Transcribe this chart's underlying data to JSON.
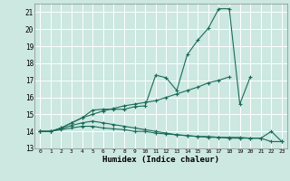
{
  "xlabel": "Humidex (Indice chaleur)",
  "xlim": [
    -0.5,
    23.5
  ],
  "ylim": [
    13,
    21.5
  ],
  "yticks": [
    13,
    14,
    15,
    16,
    17,
    18,
    19,
    20,
    21
  ],
  "xticks": [
    0,
    1,
    2,
    3,
    4,
    5,
    6,
    7,
    8,
    9,
    10,
    11,
    12,
    13,
    14,
    15,
    16,
    17,
    18,
    19,
    20,
    21,
    22,
    23
  ],
  "background_color": "#cce8e0",
  "grid_color": "#ffffff",
  "line_color": "#1a6b5a",
  "lines": [
    {
      "x": [
        0,
        1,
        2,
        3,
        4,
        5,
        6,
        7,
        8,
        9,
        10,
        11,
        12,
        13,
        14,
        15,
        16,
        17,
        18,
        19,
        20
      ],
      "y": [
        14.0,
        14.0,
        14.2,
        14.5,
        14.8,
        15.25,
        15.3,
        15.3,
        15.3,
        15.45,
        15.5,
        17.3,
        17.15,
        16.4,
        18.5,
        19.35,
        20.05,
        21.2,
        21.2,
        15.6,
        17.2
      ]
    },
    {
      "x": [
        0,
        1,
        2,
        3,
        4,
        5,
        6,
        7,
        8,
        9,
        10,
        11,
        12,
        13,
        14,
        15,
        16,
        17,
        18
      ],
      "y": [
        14.0,
        14.0,
        14.2,
        14.5,
        14.8,
        15.0,
        15.2,
        15.35,
        15.5,
        15.6,
        15.7,
        15.8,
        16.0,
        16.2,
        16.4,
        16.6,
        16.85,
        17.0,
        17.2
      ]
    },
    {
      "x": [
        0,
        1,
        2,
        3,
        4,
        5,
        6,
        7,
        8,
        9,
        10,
        11,
        12,
        13,
        14,
        15,
        16,
        17,
        18,
        19,
        20,
        21,
        22,
        23
      ],
      "y": [
        14.0,
        14.0,
        14.1,
        14.2,
        14.3,
        14.3,
        14.2,
        14.15,
        14.1,
        14.0,
        14.0,
        13.9,
        13.85,
        13.8,
        13.75,
        13.7,
        13.7,
        13.65,
        13.65,
        13.65,
        13.6,
        13.6,
        13.4,
        13.4
      ]
    },
    {
      "x": [
        0,
        1,
        2,
        3,
        4,
        5,
        6,
        7,
        8,
        9,
        10,
        11,
        12,
        13,
        14,
        15,
        16,
        17,
        18,
        19,
        20,
        21,
        22,
        23
      ],
      "y": [
        14.0,
        14.0,
        14.15,
        14.35,
        14.5,
        14.6,
        14.5,
        14.4,
        14.3,
        14.2,
        14.1,
        14.0,
        13.9,
        13.8,
        13.75,
        13.7,
        13.65,
        13.65,
        13.6,
        13.6,
        13.6,
        13.6,
        14.0,
        13.4
      ]
    }
  ]
}
